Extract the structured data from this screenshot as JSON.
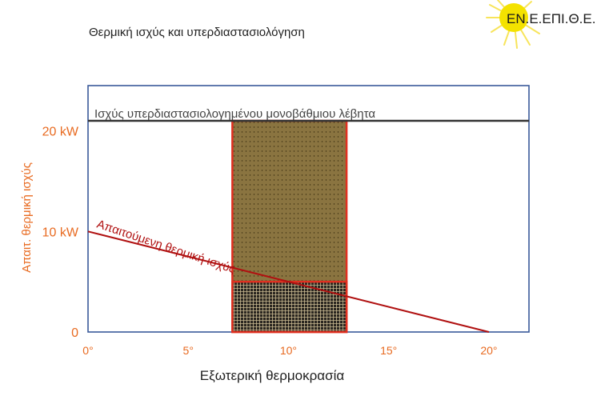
{
  "slide": {
    "title": "Θερμική ισχύς και υπερδιαστασιολόγηση",
    "logo_text": "ΕΝ.Ε.ΕΠΙ.Θ.Ε."
  },
  "chart_data": {
    "type": "line",
    "xlabel": "Εξωτερική θερμοκρασία",
    "ylabel": "Απαιτ. θερμική ισχύς",
    "x_ticks": [
      "0°",
      "5°",
      "10°",
      "15°",
      "20°"
    ],
    "x_tick_values": [
      0,
      5,
      10,
      15,
      20
    ],
    "y_ticks": [
      "0",
      "10 kW",
      "20 kW"
    ],
    "y_tick_values": [
      0,
      10,
      20
    ],
    "xlim": [
      0,
      22
    ],
    "ylim": [
      0,
      24.5
    ],
    "series": [
      {
        "name": "Απαιτούμενη θερμική ισχύς",
        "x": [
          0,
          20
        ],
        "y": [
          10,
          0
        ],
        "color": "#b01010"
      },
      {
        "name": "Ισχύς υπερδιαστασιολογημένου μονοβάθμιου λέβητα",
        "x": [
          0,
          22
        ],
        "y": [
          21,
          21
        ],
        "color": "#333333"
      }
    ],
    "shaded_band": {
      "x_range": [
        7.2,
        12.9
      ],
      "y_top": 21,
      "lower_y_top": 5,
      "fill_color": "#8a7440",
      "lower_fill_color": "#2a2620",
      "border_color": "#e03020"
    },
    "colors": {
      "frame": "#3a5a9a",
      "axis_labels": "#e86a20",
      "demand_line": "#b01010",
      "capacity_line": "#333333",
      "logo_circle": "#f4e200",
      "logo_text": "#1a1a1a"
    }
  }
}
